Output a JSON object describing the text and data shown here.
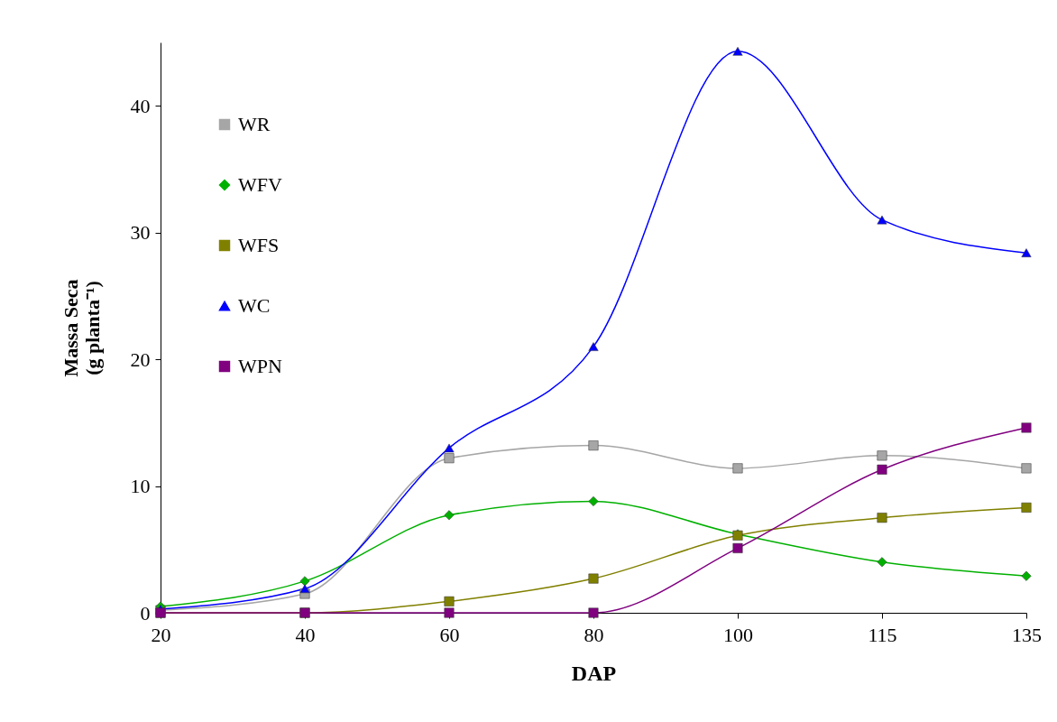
{
  "chart_data": {
    "type": "line",
    "xlabel": "DAP",
    "ylabel": "Massa Seca\n(g planta⁻¹)",
    "categories": [
      "20",
      "40",
      "60",
      "80",
      "100",
      "115",
      "135"
    ],
    "ylim": [
      0,
      45
    ],
    "yticks": [
      0,
      10,
      20,
      30,
      40
    ],
    "grid": false,
    "legend": "top left",
    "line_style": "solid",
    "series": [
      {
        "name": "WR",
        "color": "#a6a6a6",
        "marker": "square",
        "values": [
          0.2,
          1.5,
          12.2,
          13.2,
          11.4,
          12.4,
          11.4
        ]
      },
      {
        "name": "WFV",
        "color": "#00b000",
        "marker": "diamond",
        "values": [
          0.5,
          2.5,
          7.7,
          8.8,
          6.2,
          4.0,
          2.9
        ]
      },
      {
        "name": "WFS",
        "color": "#808000",
        "marker": "square",
        "values": [
          0,
          0,
          0.9,
          2.7,
          6.1,
          7.5,
          8.3
        ]
      },
      {
        "name": "WC",
        "color": "#0000ff",
        "marker": "triangle",
        "values": [
          0.3,
          1.9,
          13.0,
          21.0,
          44.3,
          31.0,
          28.4
        ]
      },
      {
        "name": "WPN",
        "color": "#800080",
        "marker": "square",
        "values": [
          0,
          0,
          0,
          0,
          5.1,
          11.3,
          14.6
        ]
      }
    ]
  }
}
